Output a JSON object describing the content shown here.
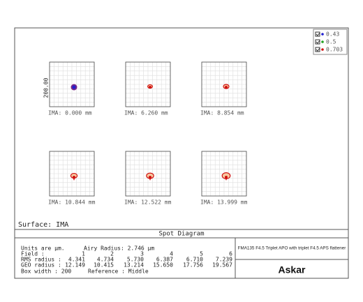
{
  "legend": [
    {
      "label": "0.43",
      "color": "#2020d0"
    },
    {
      "label": "0.5",
      "color": "#20a020"
    },
    {
      "label": "0.703",
      "color": "#d01010"
    }
  ],
  "scale_label": "200.00",
  "fields": [
    "IMA: 0.000 mm",
    "IMA: 6.260 mm",
    "IMA: 8.854 mm",
    "IMA: 10.844 mm",
    "IMA: 12.522 mm",
    "IMA: 13.999 mm"
  ],
  "surface": "Surface: IMA",
  "title": "Spot Diagram",
  "units": "Units are µm.",
  "airy": "Airy Radius: 2.746 µm",
  "table": {
    "rows": [
      {
        "label": "Field    :",
        "cells": [
          "1",
          "2",
          "3",
          "4",
          "5",
          "6"
        ]
      },
      {
        "label": "RMS radius :",
        "cells": [
          "4.341",
          "4.734",
          "5.730",
          "6.387",
          "6.710",
          "7.239"
        ]
      },
      {
        "label": "GEO radius :",
        "cells": [
          "12.149",
          "10.415",
          "13.214",
          "15.650",
          "17.756",
          "19.567"
        ]
      }
    ]
  },
  "box_width": "Box width : 200",
  "reference": "Reference  : Middle",
  "description": "FMA135 F4.5 Triplet APO with triplet F4.5 APS flattener",
  "logo": "Askar"
}
